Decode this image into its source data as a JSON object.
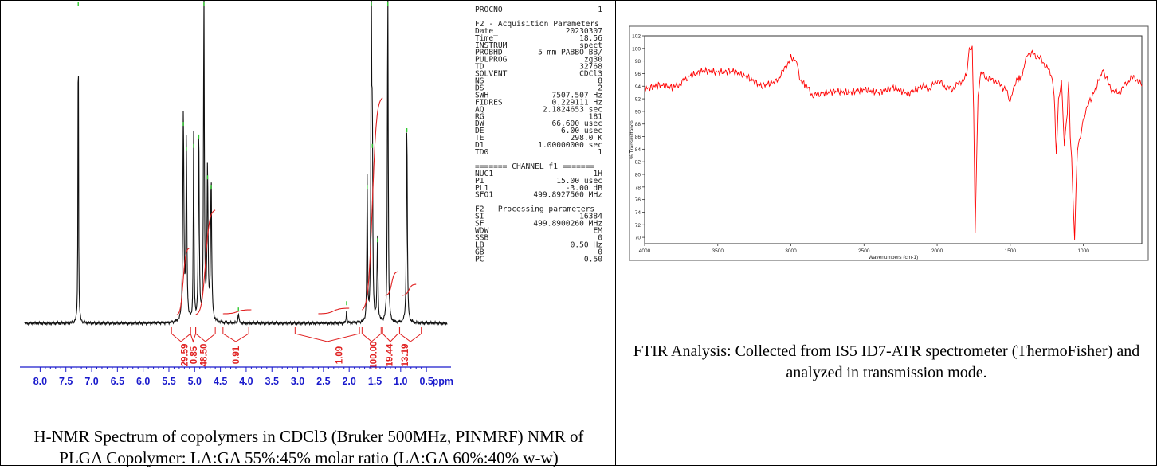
{
  "nmr_caption": "H-NMR Spectrum of copolymers in CDCl3 (Bruker 500MHz, PINMRF) NMR of PLGA Copolymer: LA:GA 55%:45% molar ratio (LA:GA 60%:40% w-w)",
  "ftir_caption": "FTIR Analysis: Collected from IS5 ID7-ATR spectrometer (ThermoFisher) and analyzed in transmission mode.",
  "params": [
    {
      "k": "PROCNO",
      "v": "1"
    },
    {
      "k": "",
      "v": ""
    },
    {
      "k": "F2 - Acquisition Parameters",
      "v": "",
      "head": true
    },
    {
      "k": "Date_",
      "v": "20230307"
    },
    {
      "k": "Time",
      "v": "18.56"
    },
    {
      "k": "INSTRUM",
      "v": "spect"
    },
    {
      "k": "PROBHD",
      "v": "5 mm PABBO BB/"
    },
    {
      "k": "PULPROG",
      "v": "zg30"
    },
    {
      "k": "TD",
      "v": "32768"
    },
    {
      "k": "SOLVENT",
      "v": "CDCl3"
    },
    {
      "k": "NS",
      "v": "8"
    },
    {
      "k": "DS",
      "v": "2"
    },
    {
      "k": "SWH",
      "v": "7507.507 Hz"
    },
    {
      "k": "FIDRES",
      "v": "0.229111 Hz"
    },
    {
      "k": "AQ",
      "v": "2.1824653 sec"
    },
    {
      "k": "RG",
      "v": "181"
    },
    {
      "k": "DW",
      "v": "66.600 usec"
    },
    {
      "k": "DE",
      "v": "6.00 usec"
    },
    {
      "k": "TE",
      "v": "298.0 K"
    },
    {
      "k": "D1",
      "v": "1.00000000 sec"
    },
    {
      "k": "TD0",
      "v": "1"
    },
    {
      "k": "",
      "v": ""
    },
    {
      "k": "======= CHANNEL f1 =======",
      "v": "",
      "head": true
    },
    {
      "k": "NUC1",
      "v": "1H"
    },
    {
      "k": "P1",
      "v": "15.00 usec"
    },
    {
      "k": "PL1",
      "v": "-3.00 dB"
    },
    {
      "k": "SFO1",
      "v": "499.8927500 MHz"
    },
    {
      "k": "",
      "v": ""
    },
    {
      "k": "F2 - Processing parameters",
      "v": "",
      "head": true
    },
    {
      "k": "SI",
      "v": "16384"
    },
    {
      "k": "SF",
      "v": "499.8900260 MHz"
    },
    {
      "k": "WDW",
      "v": "EM"
    },
    {
      "k": "SSB",
      "v": "0"
    },
    {
      "k": "LB",
      "v": "0.50 Hz"
    },
    {
      "k": "GB",
      "v": "0"
    },
    {
      "k": "PC",
      "v": "0.50"
    }
  ],
  "chart_data": [
    {
      "type": "line",
      "title": "",
      "xlabel": "ppm",
      "ylabel": "",
      "xlim": [
        8.3,
        0.1
      ],
      "x_reversed": true,
      "xticks": [
        "8.0",
        "7.5",
        "7.0",
        "6.5",
        "6.0",
        "5.5",
        "5.0",
        "4.5",
        "4.0",
        "3.5",
        "3.0",
        "2.5",
        "2.0",
        "1.5",
        "1.0",
        "0.5"
      ],
      "peaks_ppm": [
        7.26,
        5.22,
        5.16,
        5.02,
        4.92,
        4.82,
        4.75,
        4.68,
        4.15,
        2.05,
        1.65,
        1.57,
        1.55,
        1.45,
        1.25,
        0.88
      ],
      "peak_heights": [
        1.0,
        0.62,
        0.54,
        0.55,
        0.58,
        1.0,
        0.45,
        0.42,
        0.03,
        0.05,
        0.42,
        1.0,
        0.55,
        0.25,
        1.0,
        0.6
      ],
      "integrals": [
        {
          "value": "29.59",
          "ppm": 5.2
        },
        {
          "value": "0.85",
          "ppm": 5.02
        },
        {
          "value": "48.50",
          "ppm": 4.83
        },
        {
          "value": "0.91",
          "ppm": 4.2
        },
        {
          "value": "1.09",
          "ppm": 2.2
        },
        {
          "value": "100.00",
          "ppm": 1.53
        },
        {
          "value": "19.44",
          "ppm": 1.22
        },
        {
          "value": "13.19",
          "ppm": 0.92
        }
      ]
    },
    {
      "type": "line",
      "title": "",
      "xlabel": "Wavenumbers (cm-1)",
      "ylabel": "% Transmittance",
      "xlim": [
        4000,
        600
      ],
      "x_reversed": true,
      "ylim": [
        69,
        102
      ],
      "xticks": [
        "4000",
        "3500",
        "3000",
        "2500",
        "2000",
        "1500",
        "1000"
      ],
      "yticks": [
        "102",
        "100",
        "98",
        "96",
        "94",
        "92",
        "90",
        "88",
        "86",
        "84",
        "82",
        "80",
        "78",
        "76",
        "74",
        "72",
        "70"
      ],
      "color": "#ff0000",
      "x": [
        4000,
        3900,
        3800,
        3750,
        3700,
        3600,
        3500,
        3400,
        3300,
        3200,
        3100,
        3050,
        3000,
        2960,
        2940,
        2900,
        2850,
        2800,
        2700,
        2600,
        2500,
        2400,
        2300,
        2200,
        2100,
        2050,
        2000,
        1950,
        1900,
        1850,
        1800,
        1780,
        1760,
        1750,
        1740,
        1720,
        1700,
        1650,
        1600,
        1550,
        1520,
        1500,
        1480,
        1450,
        1423,
        1400,
        1380,
        1350,
        1300,
        1250,
        1220,
        1200,
        1185,
        1170,
        1150,
        1130,
        1110,
        1100,
        1090,
        1080,
        1060,
        1050,
        1040,
        1020,
        1000,
        980,
        960,
        930,
        900,
        870,
        850,
        800,
        750,
        700,
        650,
        600
      ],
      "y": [
        93.5,
        94.2,
        93.8,
        94.5,
        95.5,
        96.5,
        96.2,
        96.4,
        95.5,
        94.0,
        94.8,
        96.5,
        98.5,
        98.0,
        95.0,
        94.2,
        92.5,
        92.8,
        93.2,
        93.0,
        93.5,
        93.0,
        93.8,
        92.8,
        94.0,
        93.5,
        95.0,
        94.0,
        93.5,
        94.5,
        95.5,
        99.5,
        100.0,
        90.0,
        70.8,
        92.5,
        96.0,
        95.2,
        94.8,
        93.8,
        93.2,
        91.5,
        93.8,
        95.0,
        95.5,
        97.5,
        99.0,
        99.2,
        98.5,
        97.0,
        96.0,
        93.0,
        83.0,
        92.0,
        95.0,
        85.0,
        90.0,
        95.0,
        86.0,
        82.5,
        69.5,
        78.0,
        84.0,
        86.0,
        88.5,
        90.0,
        91.5,
        92.8,
        94.5,
        96.5,
        95.5,
        93.2,
        93.0,
        94.8,
        95.5,
        94.0
      ]
    }
  ]
}
